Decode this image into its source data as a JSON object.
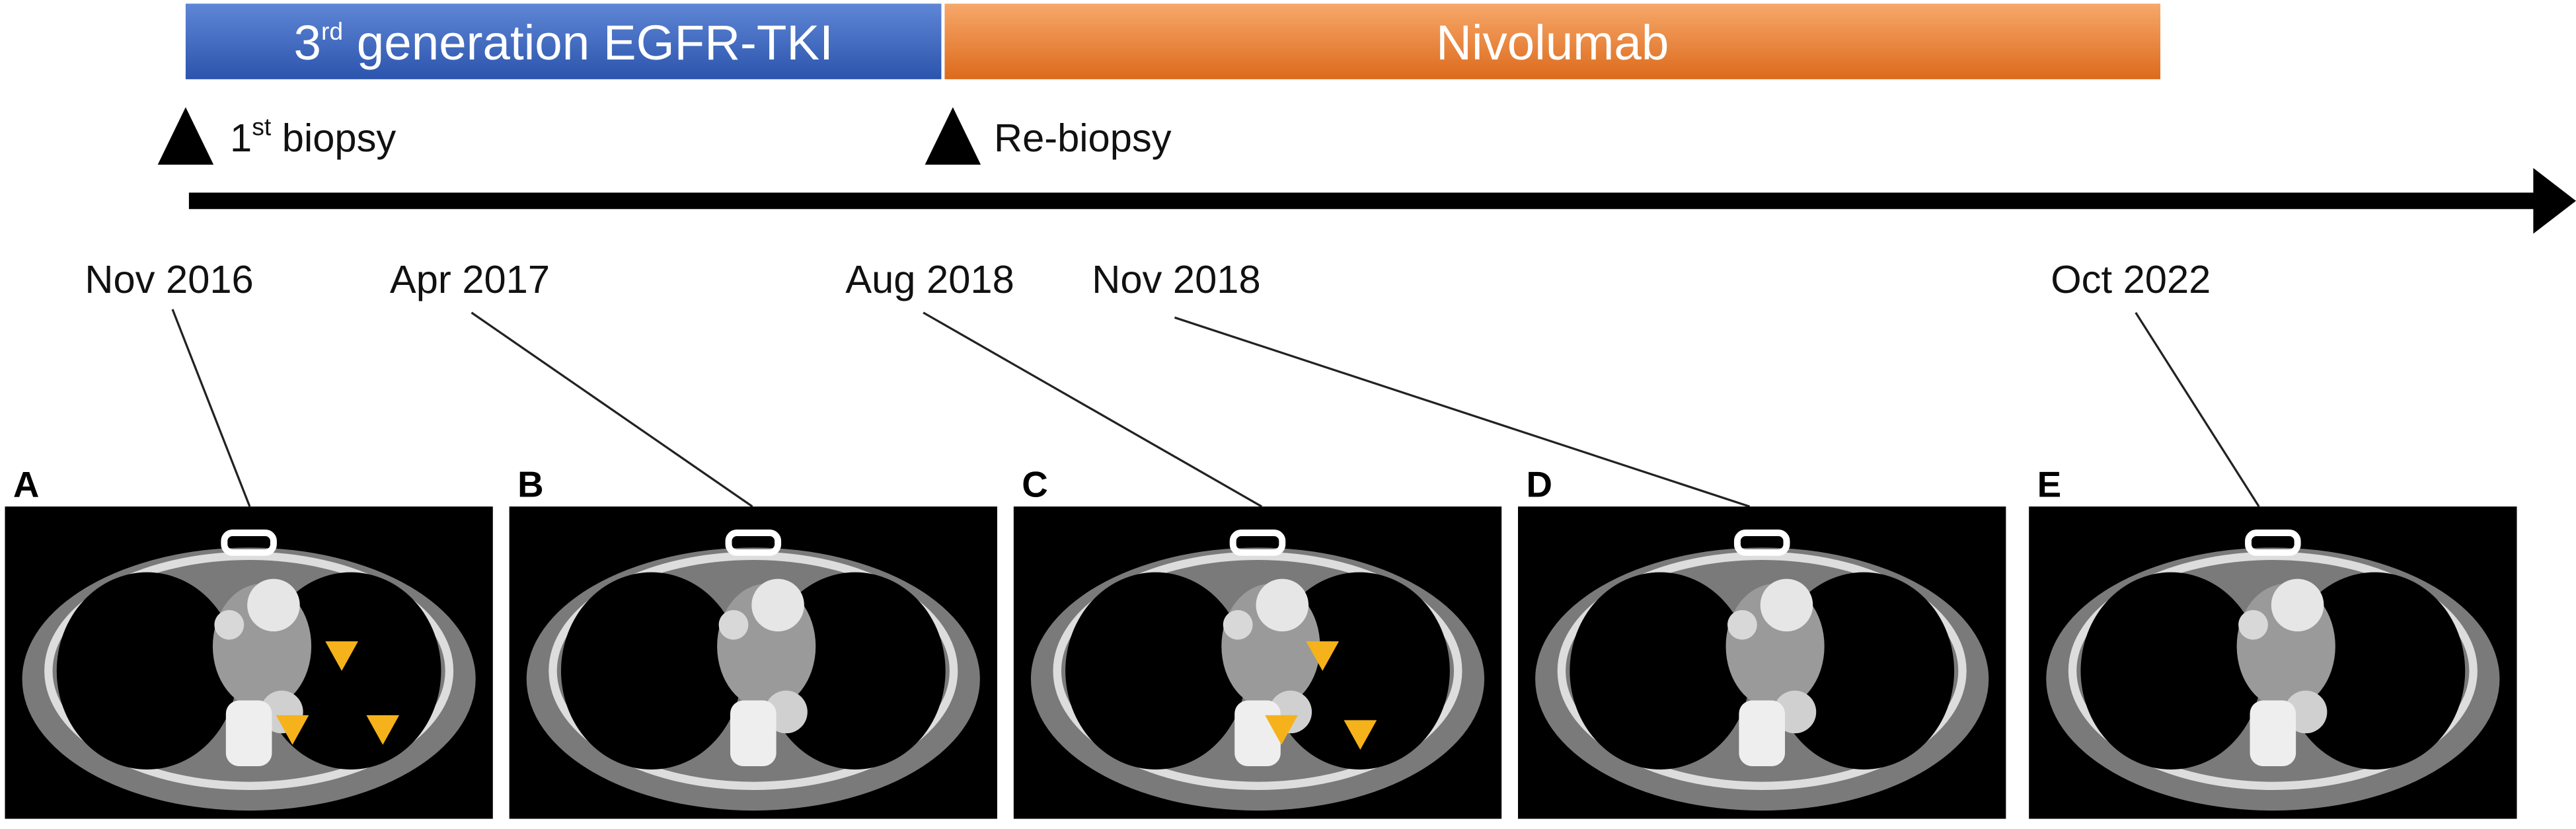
{
  "treatments": [
    {
      "main": "3",
      "sup": "rd",
      "rest": " generation EGFR-TKI"
    },
    {
      "main": "Nivolumab"
    }
  ],
  "biopsies": [
    {
      "main": "1",
      "sup": "st",
      "rest": " biopsy"
    },
    {
      "main": "Re-biopsy"
    }
  ],
  "dates": [
    "Nov 2016",
    "Apr 2017",
    "Aug 2018",
    "Nov 2018",
    "Oct 2022"
  ],
  "panels": [
    "A",
    "B",
    "C",
    "D",
    "E"
  ]
}
